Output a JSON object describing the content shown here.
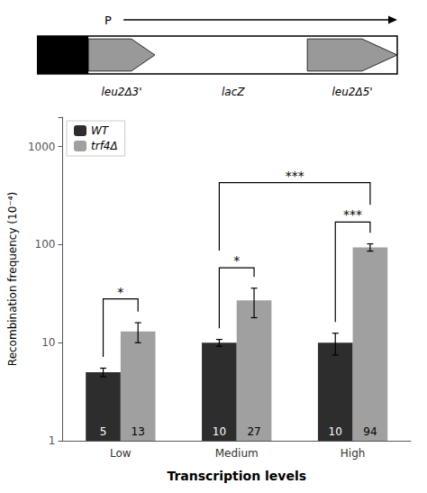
{
  "chart_data": {
    "type": "bar",
    "categories": [
      "Low",
      "Medium",
      "High"
    ],
    "series": [
      {
        "name": "WT",
        "color": "#2d2d2d",
        "values": [
          5,
          10,
          10
        ],
        "errors": [
          0.5,
          0.8,
          2.5
        ]
      },
      {
        "name": "trf4Δ",
        "color": "#a0a0a0",
        "values": [
          13,
          27,
          94
        ],
        "errors": [
          3.0,
          9.0,
          8.0
        ]
      }
    ],
    "xlabel": "Transcription levels",
    "ylabel": "Recombination frequency (10⁻⁴)",
    "log": "y",
    "ylim": [
      1,
      2000
    ],
    "yticks": [
      1,
      10,
      100,
      1000
    ],
    "grid": false,
    "legend": "upper left",
    "data_labels": true,
    "annotations": [
      {
        "text": "*",
        "from": [
          "Low",
          "WT"
        ],
        "to": [
          "Low",
          "trf4Δ"
        ],
        "y": 28
      },
      {
        "text": "*",
        "from": [
          "Medium",
          "WT"
        ],
        "to": [
          "Medium",
          "trf4Δ"
        ],
        "y": 58
      },
      {
        "text": "***",
        "from": [
          "High",
          "WT"
        ],
        "to": [
          "High",
          "trf4Δ"
        ],
        "y": 170
      },
      {
        "text": "***",
        "from": [
          "Medium",
          "WT"
        ],
        "to": [
          "High",
          "trf4Δ"
        ],
        "y": 430
      }
    ],
    "diagram": {
      "promoter": "P",
      "parts": [
        "leu2Δ3'",
        "lacZ",
        "leu2Δ5'"
      ],
      "color": "#999999"
    }
  }
}
